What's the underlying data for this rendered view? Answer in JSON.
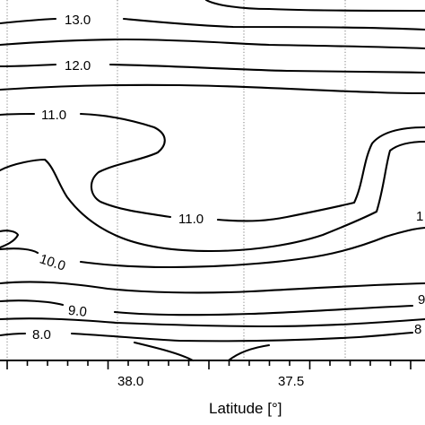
{
  "chart_data": {
    "type": "contour",
    "xlabel": "Latitude [°]",
    "x_ticks_labeled": [
      38.0,
      37.5
    ],
    "x_tick_labels": [
      "38.0",
      "37.5"
    ],
    "contour_labels": [
      {
        "level": "13.0"
      },
      {
        "level": "12.0"
      },
      {
        "level": "11.0"
      },
      {
        "level": "11.0"
      },
      {
        "level": "10.0"
      },
      {
        "level": "9.0"
      },
      {
        "level": "8.0"
      },
      {
        "level": "1",
        "note": "clipped at right edge"
      },
      {
        "level": "9",
        "note": "clipped at right edge"
      },
      {
        "level": "8",
        "note": "clipped at right edge"
      }
    ],
    "grid": "dotted vertical guides",
    "color": "#000000"
  }
}
